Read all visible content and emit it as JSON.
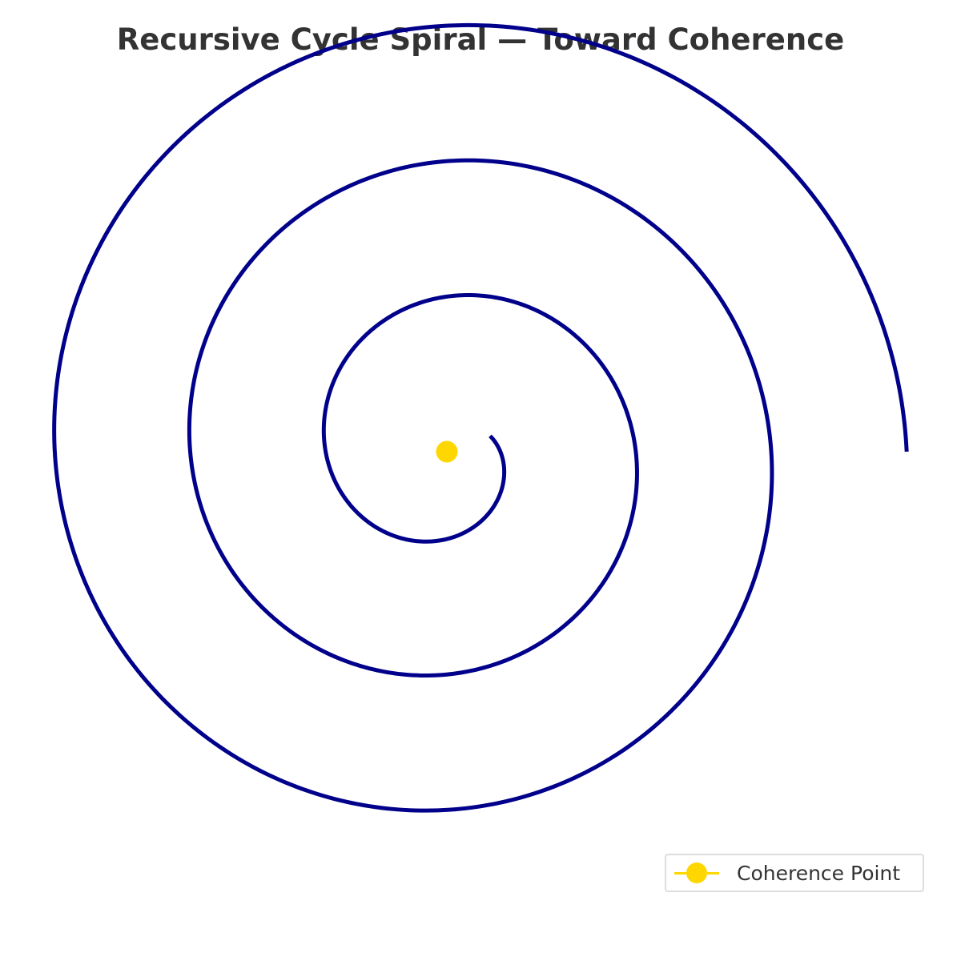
{
  "chart_data": {
    "type": "line",
    "title": "Recursive Cycle Spiral — Toward Coherence",
    "xlabel": "",
    "ylabel": "",
    "grid": false,
    "axes_visible": false,
    "legend_placement": "bottom-right",
    "series": [
      {
        "kind": "spiral",
        "color": "#00008b",
        "turns": 3,
        "r_start": 1.0,
        "r_end": 10.0,
        "theta_start_deg": -20,
        "theta_end_deg": 1080,
        "center": [
          0,
          0
        ]
      },
      {
        "name": "Coherence Point",
        "kind": "point",
        "color": "#ffd700",
        "x": [
          0
        ],
        "y": [
          0
        ]
      }
    ],
    "xlim": [
      -8.5,
      10.5
    ],
    "ylim": [
      -9.5,
      8.7
    ]
  }
}
